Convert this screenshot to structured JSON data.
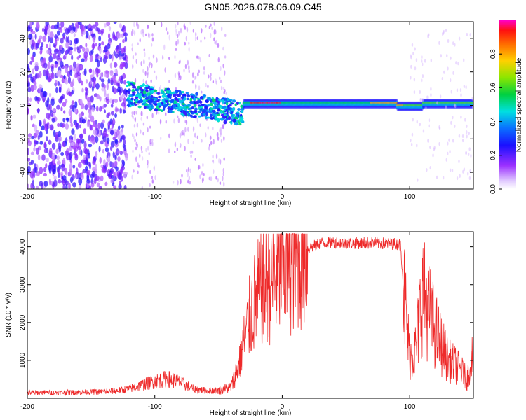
{
  "title": "GN05.2026.078.06.09.C45",
  "colors": {
    "snr_line": "#ee2a2a",
    "colormap": [
      "#ffffff",
      "#e9d2ff",
      "#b266ff",
      "#6a1cff",
      "#2a10ff",
      "#0a6cff",
      "#00e5e5",
      "#00d060",
      "#66e600",
      "#ffd200",
      "#ff7a00",
      "#ff1010",
      "#ff00c0"
    ]
  },
  "chart_data": [
    {
      "type": "heatmap",
      "title": "GN05.2026.078.06.09.C45",
      "xlabel": "Height of straight line (km)",
      "ylabel": "Frequency (Hz)",
      "xlim": [
        -200,
        150
      ],
      "ylim": [
        -50,
        50
      ],
      "xticks": [
        -200,
        -100,
        0,
        100
      ],
      "yticks": [
        -40,
        -20,
        0,
        20,
        40
      ],
      "colorbar": {
        "label": "Normalized spectral amplitude",
        "range": [
          0,
          1
        ],
        "ticks": [
          0.0,
          0.2,
          0.4,
          0.6,
          0.8
        ]
      },
      "features": [
        {
          "x_range": [
            -200,
            -120
          ],
          "freq_range": [
            -50,
            50
          ],
          "amplitude": 0.15,
          "note": "scattered noise"
        },
        {
          "x_range": [
            -122,
            -30
          ],
          "center_freq_start": 7,
          "center_freq_end": -5,
          "amplitude": 0.4
        },
        {
          "x_range": [
            -85,
            -45
          ],
          "freq_range": [
            -50,
            50
          ],
          "amplitude": 0.1
        },
        {
          "x_range": [
            -30,
            150
          ],
          "center_freq": 1,
          "amplitude": 0.55
        },
        {
          "x_range": [
            -25,
            0
          ],
          "center_freq": 2,
          "amplitude": 0.95
        },
        {
          "x_range": [
            70,
            95
          ],
          "center_freq": 2,
          "amplitude": 0.85
        }
      ]
    },
    {
      "type": "line",
      "xlabel": "Height of straight line (km)",
      "ylabel": "SNR (10 * v/v)",
      "xlim": [
        -200,
        150
      ],
      "ylim": [
        0,
        4400
      ],
      "xticks": [
        -200,
        -100,
        0,
        100
      ],
      "yticks": [
        1000,
        2000,
        3000,
        4000
      ],
      "series": [
        {
          "x": [
            -200,
            -180,
            -160,
            -140,
            -130,
            -120,
            -110,
            -100,
            -90,
            -80,
            -70,
            -60,
            -50,
            -40,
            -35,
            -30,
            -25,
            -20,
            -15,
            -10,
            -5,
            0,
            5,
            10,
            20,
            30,
            40,
            50,
            60,
            70,
            80,
            90,
            93,
            95,
            100,
            105,
            110,
            115,
            120,
            125,
            130,
            135,
            140,
            145,
            150
          ],
          "y": [
            150,
            150,
            160,
            170,
            200,
            250,
            350,
            450,
            520,
            420,
            250,
            200,
            200,
            300,
            800,
            1500,
            2200,
            2700,
            2900,
            3050,
            3200,
            3350,
            3500,
            3750,
            3950,
            4100,
            4120,
            4110,
            4100,
            4100,
            4090,
            4080,
            4050,
            3000,
            1100,
            1300,
            2800,
            2300,
            1800,
            1400,
            1000,
            900,
            750,
            500,
            1200
          ]
        }
      ]
    }
  ]
}
